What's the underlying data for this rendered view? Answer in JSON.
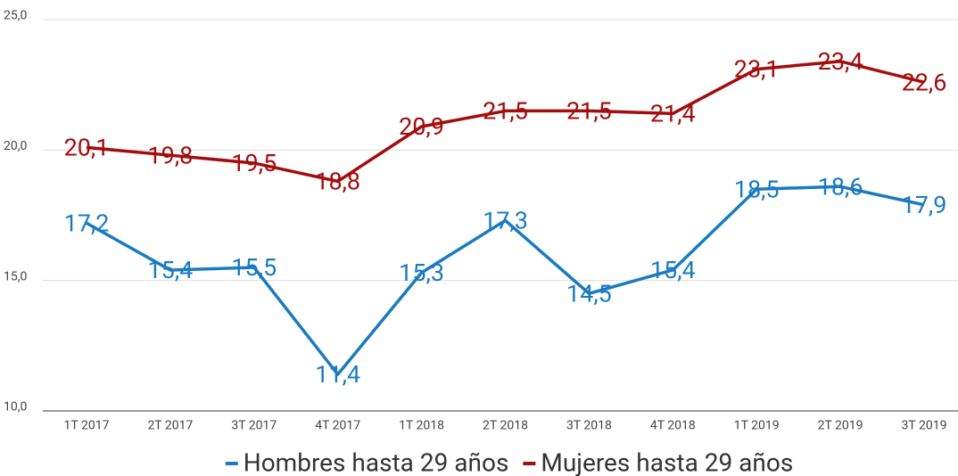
{
  "chart_data": {
    "type": "line",
    "categories": [
      "1T 2017",
      "2T 2017",
      "3T 2017",
      "4T 2017",
      "1T 2018",
      "2T 2018",
      "3T 2018",
      "4T 2018",
      "1T 2019",
      "2T 2019",
      "3T 2019"
    ],
    "series": [
      {
        "name": "Hombres hasta 29 años",
        "color": "#1a7bbf",
        "values": [
          17.2,
          15.4,
          15.5,
          11.4,
          15.3,
          17.3,
          14.5,
          15.4,
          18.5,
          18.6,
          17.9
        ],
        "value_labels": [
          "17,2",
          "15,4",
          "15,5",
          "11,4",
          "15,3",
          "17,3",
          "14,5",
          "15,4",
          "18,5",
          "18,6",
          "17,9"
        ]
      },
      {
        "name": "Mujeres hasta 29 años",
        "color": "#a30d0d",
        "values": [
          20.1,
          19.8,
          19.5,
          18.8,
          20.9,
          21.5,
          21.5,
          21.4,
          23.1,
          23.4,
          22.6
        ],
        "value_labels": [
          "20,1",
          "19,8",
          "19,5",
          "18,8",
          "20,9",
          "21,5",
          "21,5",
          "21,4",
          "23,1",
          "23,4",
          "22,6"
        ]
      }
    ],
    "ylim": [
      10,
      25
    ],
    "yticks": [
      {
        "value": 10,
        "label": "10,0"
      },
      {
        "value": 15,
        "label": "15,0"
      },
      {
        "value": 20,
        "label": "20,0"
      },
      {
        "value": 25,
        "label": "25,0"
      }
    ],
    "grid": true,
    "legend": "bottom"
  }
}
